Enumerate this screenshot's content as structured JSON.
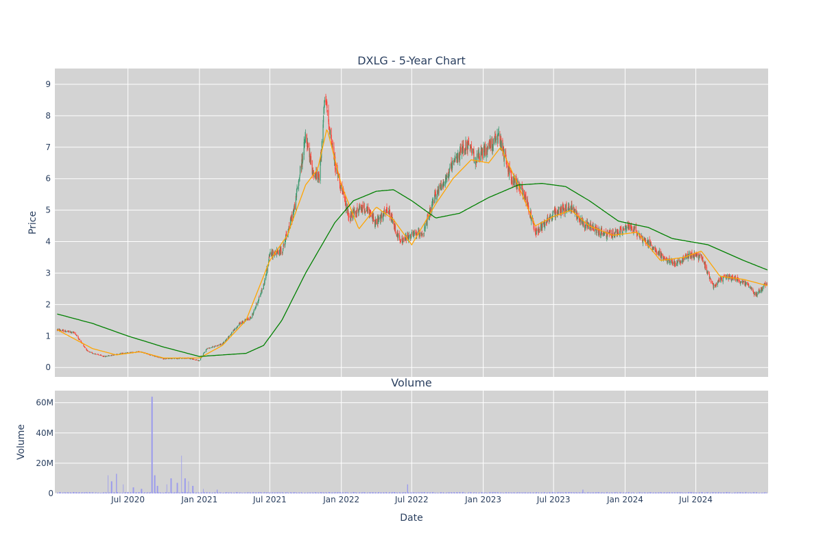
{
  "chart_data": [
    {
      "type": "candlestick",
      "title": "DXLG - 5-Year Chart",
      "xlabel": "",
      "ylabel": "Price",
      "ylim": [
        -0.3,
        9.5
      ],
      "yticks": [
        0,
        1,
        2,
        3,
        4,
        5,
        6,
        7,
        8,
        9
      ],
      "grid": true,
      "plot_background": "#d3d3d3",
      "colors": {
        "increasing": "#3d9970",
        "decreasing": "#ff4136",
        "sma_short": "orange",
        "sma_long": "green"
      },
      "price_keypoints": {
        "dates": [
          "2020-01-01",
          "2020-02-15",
          "2020-03-20",
          "2020-05-01",
          "2020-06-15",
          "2020-08-01",
          "2020-10-01",
          "2020-12-01",
          "2020-12-31",
          "2021-01-20",
          "2021-03-01",
          "2021-04-15",
          "2021-05-15",
          "2021-06-15",
          "2021-07-01",
          "2021-08-01",
          "2021-09-01",
          "2021-10-01",
          "2021-10-20",
          "2021-11-05",
          "2021-11-20",
          "2021-12-15",
          "2022-01-20",
          "2022-03-01",
          "2022-04-01",
          "2022-05-01",
          "2022-06-01",
          "2022-07-01",
          "2022-08-01",
          "2022-09-01",
          "2022-10-01",
          "2022-11-01",
          "2022-11-20",
          "2022-12-15",
          "2023-01-20",
          "2023-02-10",
          "2023-03-15",
          "2023-04-15",
          "2023-05-15",
          "2023-06-15",
          "2023-07-15",
          "2023-08-15",
          "2023-09-15",
          "2023-10-15",
          "2023-11-15",
          "2023-12-15",
          "2024-01-15",
          "2024-02-15",
          "2024-03-15",
          "2024-04-15",
          "2024-05-15",
          "2024-06-15",
          "2024-07-15",
          "2024-08-15",
          "2024-09-15",
          "2024-10-15",
          "2024-11-15",
          "2024-12-01",
          "2025-01-01"
        ],
        "values": [
          1.2,
          1.1,
          0.5,
          0.35,
          0.45,
          0.5,
          0.28,
          0.3,
          0.22,
          0.6,
          0.75,
          1.4,
          1.6,
          2.6,
          3.6,
          3.7,
          5.0,
          7.3,
          6.2,
          6.0,
          8.6,
          6.5,
          4.8,
          5.1,
          4.6,
          5.0,
          4.0,
          4.2,
          4.3,
          5.5,
          6.1,
          6.8,
          7.1,
          6.6,
          7.1,
          7.3,
          6.0,
          5.6,
          4.3,
          4.7,
          5.0,
          5.1,
          4.6,
          4.4,
          4.2,
          4.3,
          4.5,
          4.1,
          3.8,
          3.4,
          3.3,
          3.6,
          3.5,
          2.6,
          2.9,
          2.8,
          2.6,
          2.3,
          2.7
        ]
      },
      "sma_short_keypoints": {
        "dates": [
          "2020-01-01",
          "2020-04-01",
          "2020-06-01",
          "2020-08-01",
          "2020-10-01",
          "2021-01-01",
          "2021-03-01",
          "2021-05-01",
          "2021-07-01",
          "2021-08-15",
          "2021-10-01",
          "2021-11-01",
          "2021-11-25",
          "2022-01-01",
          "2022-02-15",
          "2022-04-01",
          "2022-05-15",
          "2022-07-01",
          "2022-09-01",
          "2022-10-15",
          "2022-12-01",
          "2023-01-15",
          "2023-02-15",
          "2023-04-01",
          "2023-05-15",
          "2023-07-01",
          "2023-08-15",
          "2023-10-01",
          "2023-12-01",
          "2024-02-01",
          "2024-04-01",
          "2024-06-01",
          "2024-07-15",
          "2024-09-01",
          "2024-11-01",
          "2025-01-01"
        ],
        "values": [
          1.2,
          0.6,
          0.4,
          0.5,
          0.3,
          0.3,
          0.7,
          1.5,
          3.4,
          4.2,
          5.8,
          6.3,
          7.6,
          5.8,
          4.4,
          5.1,
          4.7,
          3.9,
          5.2,
          6.0,
          6.6,
          6.5,
          7.0,
          5.8,
          4.5,
          4.8,
          5.0,
          4.5,
          4.2,
          4.3,
          3.4,
          3.5,
          3.7,
          2.9,
          2.8,
          2.6
        ]
      },
      "sma_long_keypoints": {
        "dates": [
          "2020-01-01",
          "2020-04-01",
          "2020-07-01",
          "2020-10-01",
          "2021-01-01",
          "2021-05-01",
          "2021-06-15",
          "2021-08-01",
          "2021-10-01",
          "2021-12-15",
          "2022-02-01",
          "2022-04-01",
          "2022-05-15",
          "2022-07-01",
          "2022-09-01",
          "2022-11-01",
          "2023-01-15",
          "2023-04-01",
          "2023-06-01",
          "2023-08-01",
          "2023-10-01",
          "2023-12-15",
          "2024-03-01",
          "2024-05-01",
          "2024-08-01",
          "2024-11-01",
          "2025-01-01"
        ],
        "values": [
          1.7,
          1.4,
          1.0,
          0.65,
          0.35,
          0.45,
          0.7,
          1.5,
          3.0,
          4.6,
          5.3,
          5.6,
          5.65,
          5.3,
          4.75,
          4.9,
          5.4,
          5.8,
          5.85,
          5.75,
          5.3,
          4.65,
          4.45,
          4.1,
          3.9,
          3.4,
          3.1
        ]
      }
    },
    {
      "type": "bar",
      "title": "Volume",
      "xlabel": "Date",
      "ylabel": "Volume",
      "ylim": [
        0,
        68000000
      ],
      "yticks": [
        0,
        20000000,
        40000000,
        60000000
      ],
      "ytick_labels": [
        "0",
        "20M",
        "40M",
        "60M"
      ],
      "xtick_dates": [
        "2020-07-01",
        "2021-01-01",
        "2021-07-01",
        "2022-01-01",
        "2022-07-01",
        "2023-01-01",
        "2023-07-01",
        "2024-01-01",
        "2024-07-01"
      ],
      "xtick_labels": [
        "Jul 2020",
        "Jan 2021",
        "Jul 2021",
        "Jan 2022",
        "Jul 2022",
        "Jan 2023",
        "Jul 2023",
        "Jan 2024",
        "Jul 2024"
      ],
      "bar_color": "#9999ee",
      "spikes": {
        "dates": [
          "2020-05-10",
          "2020-05-20",
          "2020-06-01",
          "2020-06-20",
          "2020-07-15",
          "2020-08-05",
          "2020-09-01",
          "2020-09-08",
          "2020-09-15",
          "2020-10-10",
          "2020-10-20",
          "2020-11-05",
          "2020-11-15",
          "2020-11-25",
          "2020-12-05",
          "2020-12-15",
          "2021-01-10",
          "2021-02-15",
          "2022-06-20",
          "2023-09-15"
        ],
        "values": [
          12000000,
          8000000,
          13000000,
          6000000,
          4000000,
          3000000,
          64000000,
          12000000,
          5000000,
          6000000,
          10000000,
          7000000,
          25000000,
          10000000,
          8000000,
          5000000,
          3000000,
          2500000,
          6000000,
          2500000
        ]
      },
      "baseline_volume": 600000
    }
  ]
}
